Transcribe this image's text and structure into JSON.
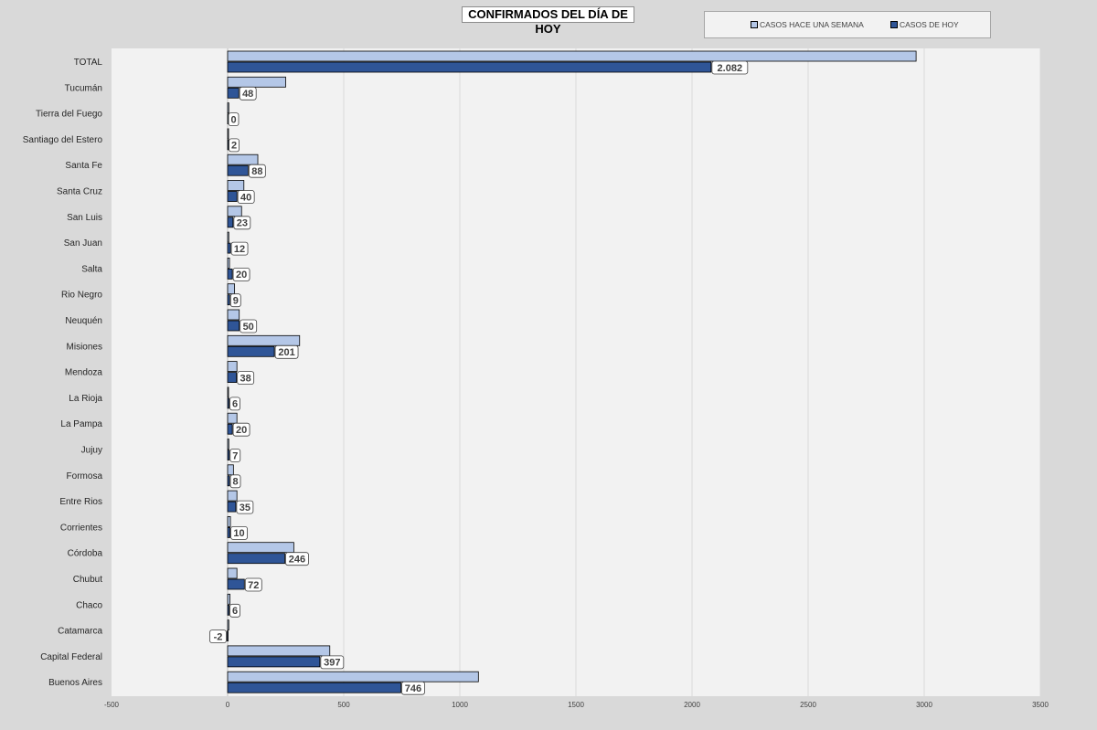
{
  "chart_data": {
    "type": "bar",
    "orientation": "horizontal",
    "title": "CONFIRMADOS DEL DÍA DE HOY",
    "xlabel": "",
    "ylabel": "",
    "xlim": [
      -500,
      3500
    ],
    "x_ticks": [
      -500,
      0,
      500,
      1000,
      1500,
      2000,
      2500,
      3000,
      3500
    ],
    "grid": true,
    "legend_position": "top-right",
    "categories": [
      "TOTAL",
      "Tucumán",
      "Tierra del Fuego",
      "Santiago del Estero",
      "Santa Fe",
      "Santa Cruz",
      "San Luis",
      "San Juan",
      "Salta",
      "Rio Negro",
      "Neuquén",
      "Misiones",
      "Mendoza",
      "La Rioja",
      "La Pampa",
      "Jujuy",
      "Formosa",
      "Entre Rios",
      "Corrientes",
      "Córdoba",
      "Chubut",
      "Chaco",
      "Catamarca",
      "Capital Federal",
      "Buenos Aires"
    ],
    "series": [
      {
        "name": "CASOS HACE UNA SEMANA",
        "color": "#b4c7e7",
        "values": [
          2965,
          250,
          5,
          3,
          130,
          70,
          60,
          5,
          8,
          30,
          50,
          310,
          40,
          3,
          40,
          5,
          25,
          40,
          12,
          285,
          40,
          10,
          5,
          440,
          1080
        ]
      },
      {
        "name": "CASOS DE HOY",
        "color": "#2f5597",
        "values": [
          2082,
          48,
          0,
          2,
          88,
          40,
          23,
          12,
          20,
          9,
          50,
          201,
          38,
          6,
          20,
          7,
          8,
          35,
          10,
          246,
          72,
          6,
          -2,
          397,
          746
        ],
        "data_labels": [
          "2.082",
          "48",
          "0",
          "2",
          "88",
          "40",
          "23",
          "12",
          "20",
          "9",
          "50",
          "201",
          "38",
          "6",
          "20",
          "7",
          "8",
          "35",
          "10",
          "246",
          "72",
          "6",
          "-2",
          "397",
          "746"
        ]
      }
    ]
  },
  "colors": {
    "background": "#d9d9d9",
    "plot_area": "#f2f2f2",
    "gridline": "#d9d9d9"
  }
}
